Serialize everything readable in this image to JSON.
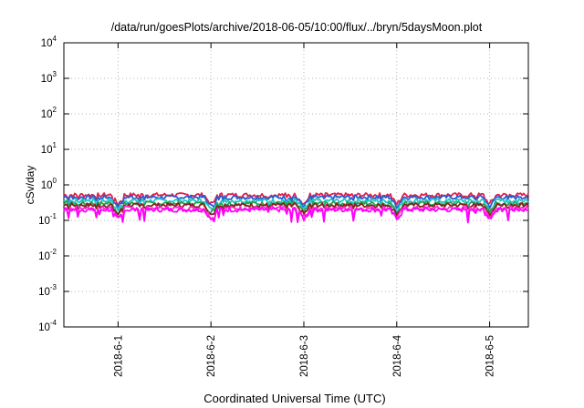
{
  "chart_data": {
    "type": "line",
    "title": "/data/run/goesPlots/archive/2018-06-05/10:00/flux/../bryn/5daysMoon.plot",
    "xlabel": "Coordinated Universal Time (UTC)",
    "ylabel": "cSv/day",
    "yscale": "log",
    "ylim": [
      0.0001,
      10000
    ],
    "y_ticks": [
      {
        "base": "10",
        "exp": "-4",
        "value": 0.0001
      },
      {
        "base": "10",
        "exp": "-3",
        "value": 0.001
      },
      {
        "base": "10",
        "exp": "-2",
        "value": 0.01
      },
      {
        "base": "10",
        "exp": "-1",
        "value": 0.1
      },
      {
        "base": "10",
        "exp": "0",
        "value": 1
      },
      {
        "base": "10",
        "exp": "1",
        "value": 10
      },
      {
        "base": "10",
        "exp": "2",
        "value": 100
      },
      {
        "base": "10",
        "exp": "3",
        "value": 1000
      },
      {
        "base": "10",
        "exp": "4",
        "value": 10000
      }
    ],
    "xlim": [
      "2018-05-31 10:00",
      "2018-06-05 10:00"
    ],
    "x_ticks": [
      {
        "label": "2018-6-1",
        "value": "2018-06-01"
      },
      {
        "label": "2018-6-2",
        "value": "2018-06-02"
      },
      {
        "label": "2018-6-3",
        "value": "2018-06-03"
      },
      {
        "label": "2018-6-4",
        "value": "2018-06-04"
      },
      {
        "label": "2018-6-5",
        "value": "2018-06-05"
      }
    ],
    "grid": true,
    "series": [
      {
        "color": "#e0204a",
        "level": 0.52
      },
      {
        "color": "#2a5cd4",
        "level": 0.45
      },
      {
        "color": "#20c8c0",
        "level": 0.36
      },
      {
        "color": "#2aa050",
        "level": 0.3
      },
      {
        "color": "#8a2020",
        "level": 0.27
      },
      {
        "color": "#ff2ad0",
        "level": 0.22
      },
      {
        "color": "#ff00ff",
        "level": 0.2
      }
    ]
  }
}
